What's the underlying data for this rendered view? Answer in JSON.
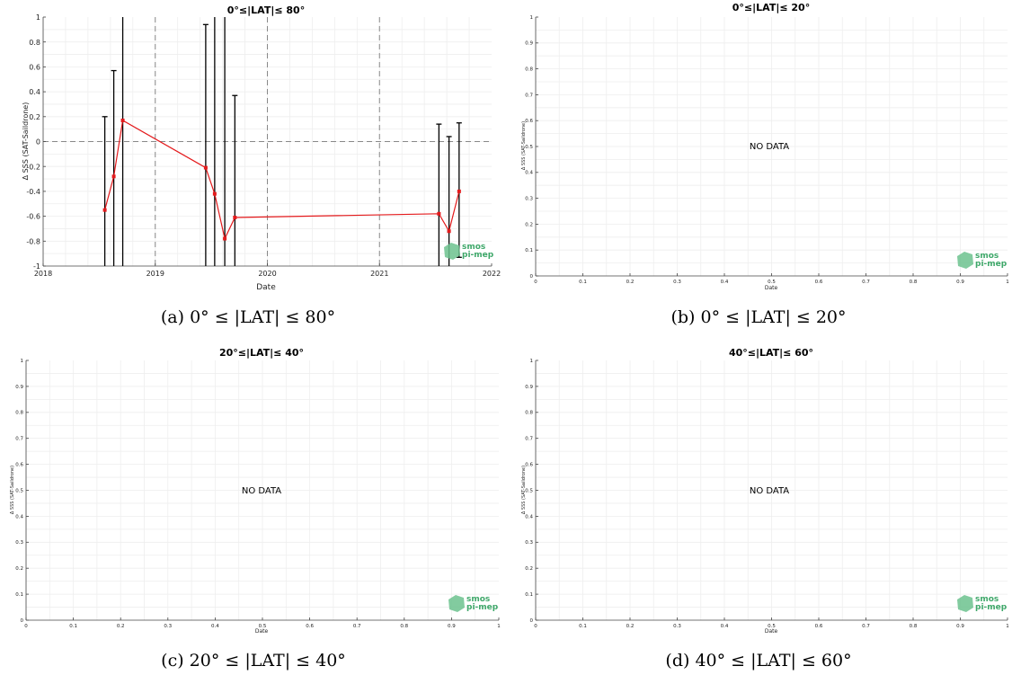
{
  "colors": {
    "series": "#e41a1c",
    "errorbar": "#000000",
    "grid_minor": "#eeeeee",
    "grid_major_dashed": "#888888",
    "logo": "#3fa86a"
  },
  "panels": [
    {
      "title": "0°≤|LAT|≤ 80°",
      "caption": "(a) 0° ≤ |LAT| ≤ 80°",
      "nodata": "",
      "logo": [
        "smos",
        "pi-mep"
      ],
      "xlabel": "Date",
      "ylabel": "Δ SSS (SAT-Saildrone)",
      "xticks": [
        "2018",
        "2019",
        "2020",
        "2021",
        "2022"
      ],
      "yticks": [
        "-1",
        "-0.8",
        "-0.6",
        "-0.4",
        "-0.2",
        "0",
        "0.2",
        "0.4",
        "0.6",
        "0.8",
        "1"
      ]
    },
    {
      "title": "0°≤|LAT|≤ 20°",
      "caption": "(b) 0° ≤ |LAT| ≤ 20°",
      "nodata": "NO DATA",
      "logo": [
        "smos",
        "pi-mep"
      ],
      "xlabel": "Date",
      "ylabel": "Δ SSS (SAT-Saildrone)",
      "xticks": [
        "0",
        "0.1",
        "0.2",
        "0.3",
        "0.4",
        "0.5",
        "0.6",
        "0.7",
        "0.8",
        "0.9",
        "1"
      ],
      "yticks": [
        "0",
        "0.1",
        "0.2",
        "0.3",
        "0.4",
        "0.5",
        "0.6",
        "0.7",
        "0.8",
        "0.9",
        "1"
      ]
    },
    {
      "title": "20°≤|LAT|≤ 40°",
      "caption": "(c) 20° ≤ |LAT| ≤ 40°",
      "nodata": "NO DATA",
      "logo": [
        "smos",
        "pi-mep"
      ],
      "xlabel": "Date",
      "ylabel": "Δ SSS (SAT-Saildrone)",
      "xticks": [
        "0",
        "0.1",
        "0.2",
        "0.3",
        "0.4",
        "0.5",
        "0.6",
        "0.7",
        "0.8",
        "0.9",
        "1"
      ],
      "yticks": [
        "0",
        "0.1",
        "0.2",
        "0.3",
        "0.4",
        "0.5",
        "0.6",
        "0.7",
        "0.8",
        "0.9",
        "1"
      ]
    },
    {
      "title": "40°≤|LAT|≤ 60°",
      "caption": "(d) 40° ≤ |LAT| ≤ 60°",
      "nodata": "NO DATA",
      "logo": [
        "smos",
        "pi-mep"
      ],
      "xlabel": "Date",
      "ylabel": "Δ SSS (SAT-Saildrone)",
      "xticks": [
        "0",
        "0.1",
        "0.2",
        "0.3",
        "0.4",
        "0.5",
        "0.6",
        "0.7",
        "0.8",
        "0.9",
        "1"
      ],
      "yticks": [
        "0",
        "0.1",
        "0.2",
        "0.3",
        "0.4",
        "0.5",
        "0.6",
        "0.7",
        "0.8",
        "0.9",
        "1"
      ]
    }
  ],
  "chart_data": [
    {
      "type": "line",
      "title": "0°≤|LAT|≤ 80°",
      "xlabel": "Date",
      "ylabel": "Δ SSS (SAT-Saildrone)",
      "xlim": [
        2018,
        2022
      ],
      "ylim": [
        -1,
        1
      ],
      "x_axis": "decimal year",
      "grid": true,
      "dashed_reference": {
        "x": [
          2019,
          2020,
          2021
        ],
        "y": 0
      },
      "series": [
        {
          "x": [
            2018.55,
            2018.63,
            2018.71,
            2019.45,
            2019.53,
            2019.62,
            2019.71,
            2021.53,
            2021.62,
            2021.71
          ],
          "y": [
            -0.55,
            -0.28,
            0.17,
            -0.21,
            -0.42,
            -0.78,
            -0.61,
            -0.58,
            -0.72,
            -0.4
          ],
          "err_low": [
            -1.0,
            -1.0,
            -1.0,
            -1.0,
            -1.0,
            -1.0,
            -1.0,
            -1.0,
            -1.0,
            -0.93
          ],
          "err_high": [
            0.2,
            0.57,
            1.0,
            0.94,
            1.0,
            1.0,
            0.37,
            0.14,
            0.04,
            0.15
          ]
        }
      ]
    },
    {
      "type": "line",
      "title": "0°≤|LAT|≤ 20°",
      "xlabel": "Date",
      "ylabel": "Δ SSS (SAT-Saildrone)",
      "xlim": [
        0,
        1
      ],
      "ylim": [
        0,
        1
      ],
      "grid": true,
      "series": []
    },
    {
      "type": "line",
      "title": "20°≤|LAT|≤ 40°",
      "xlabel": "Date",
      "ylabel": "Δ SSS (SAT-Saildrone)",
      "xlim": [
        0,
        1
      ],
      "ylim": [
        0,
        1
      ],
      "grid": true,
      "series": []
    },
    {
      "type": "line",
      "title": "40°≤|LAT|≤ 60°",
      "xlabel": "Date",
      "ylabel": "Δ SSS (SAT-Saildrone)",
      "xlim": [
        0,
        1
      ],
      "ylim": [
        0,
        1
      ],
      "grid": true,
      "series": []
    }
  ]
}
